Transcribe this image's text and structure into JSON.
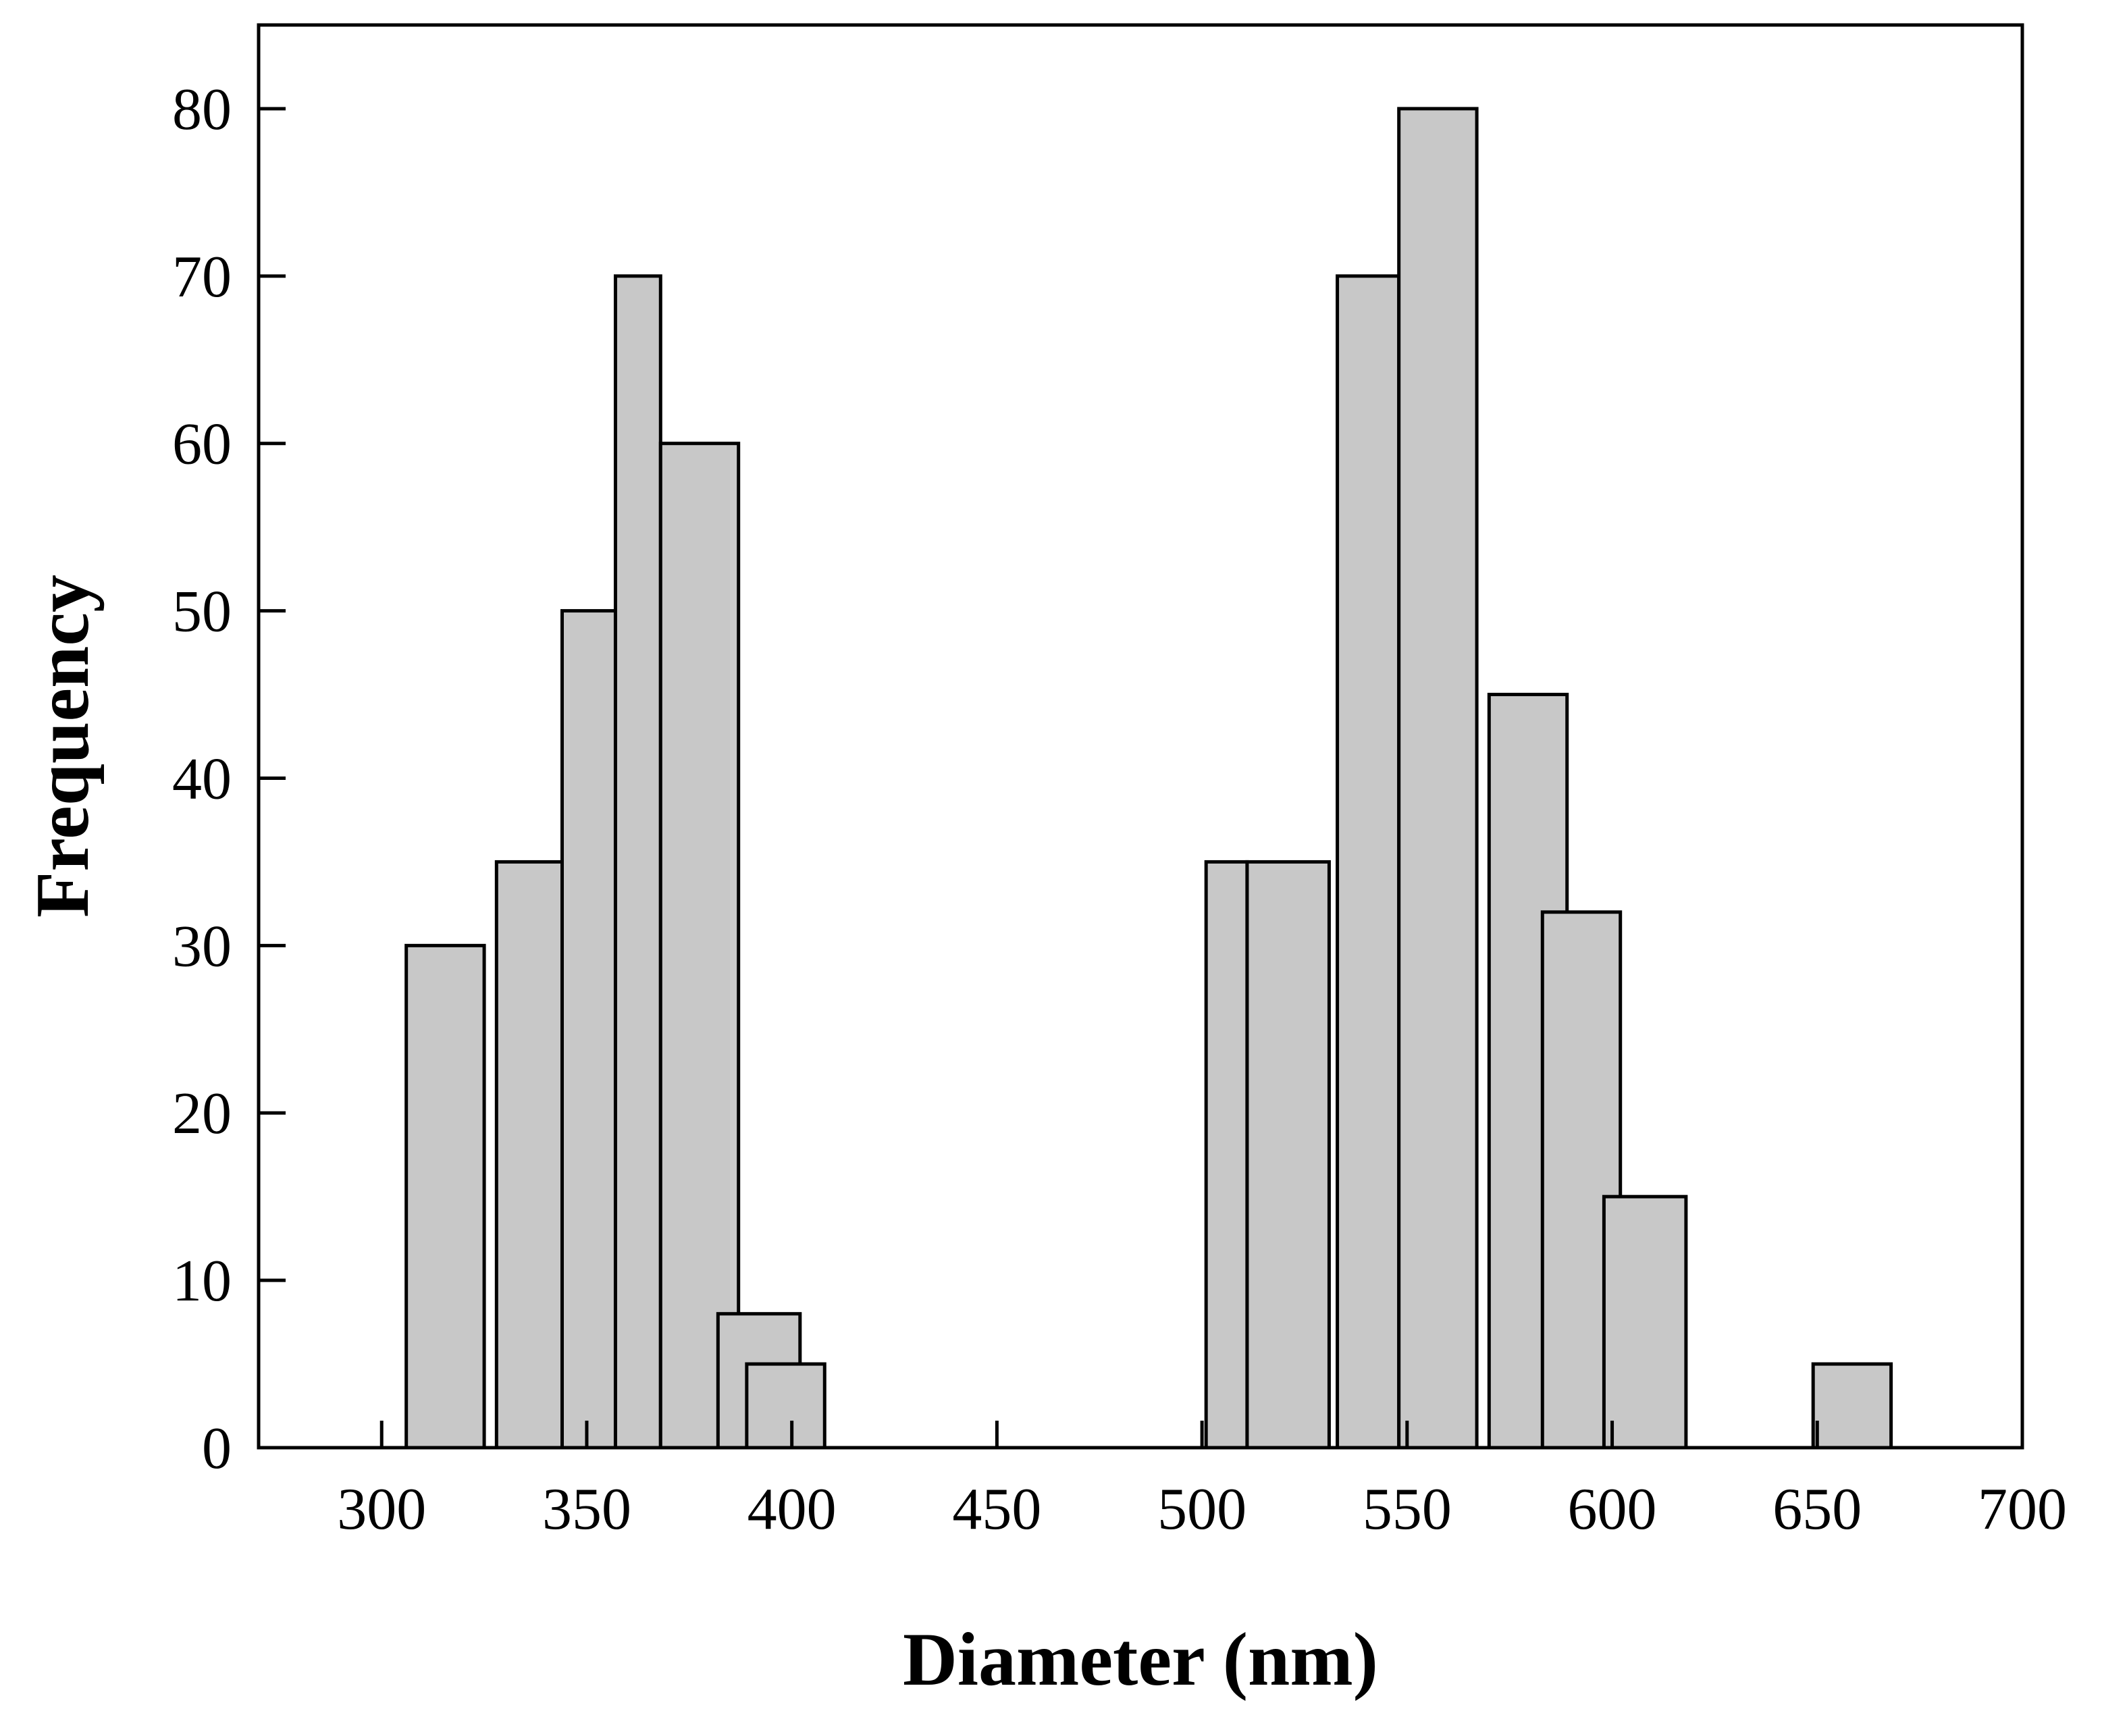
{
  "chart_data": {
    "type": "bar",
    "title": "",
    "xlabel": "Diameter (nm)",
    "ylabel": "Frequency",
    "xlim": [
      270,
      700
    ],
    "ylim": [
      0,
      85
    ],
    "xticks": [
      300,
      350,
      400,
      450,
      500,
      550,
      600,
      650,
      700
    ],
    "yticks": [
      0,
      10,
      20,
      30,
      40,
      50,
      60,
      70,
      80
    ],
    "grid": false,
    "legend": "none",
    "bar_color": "#c8c8c8",
    "edge_color": "#000000",
    "bars": [
      {
        "x0": 306,
        "x1": 325,
        "value": 30
      },
      {
        "x0": 328,
        "x1": 344,
        "value": 35
      },
      {
        "x0": 344,
        "x1": 357,
        "value": 50
      },
      {
        "x0": 357,
        "x1": 368,
        "value": 70
      },
      {
        "x0": 368,
        "x1": 387,
        "value": 60
      },
      {
        "x0": 382,
        "x1": 402,
        "value": 8
      },
      {
        "x0": 389,
        "x1": 408,
        "value": 5
      },
      {
        "x0": 501,
        "x1": 511,
        "value": 35
      },
      {
        "x0": 511,
        "x1": 531,
        "value": 35
      },
      {
        "x0": 533,
        "x1": 548,
        "value": 70
      },
      {
        "x0": 548,
        "x1": 567,
        "value": 80
      },
      {
        "x0": 570,
        "x1": 589,
        "value": 45
      },
      {
        "x0": 583,
        "x1": 602,
        "value": 32
      },
      {
        "x0": 598,
        "x1": 618,
        "value": 15
      },
      {
        "x0": 649,
        "x1": 668,
        "value": 5
      }
    ]
  }
}
